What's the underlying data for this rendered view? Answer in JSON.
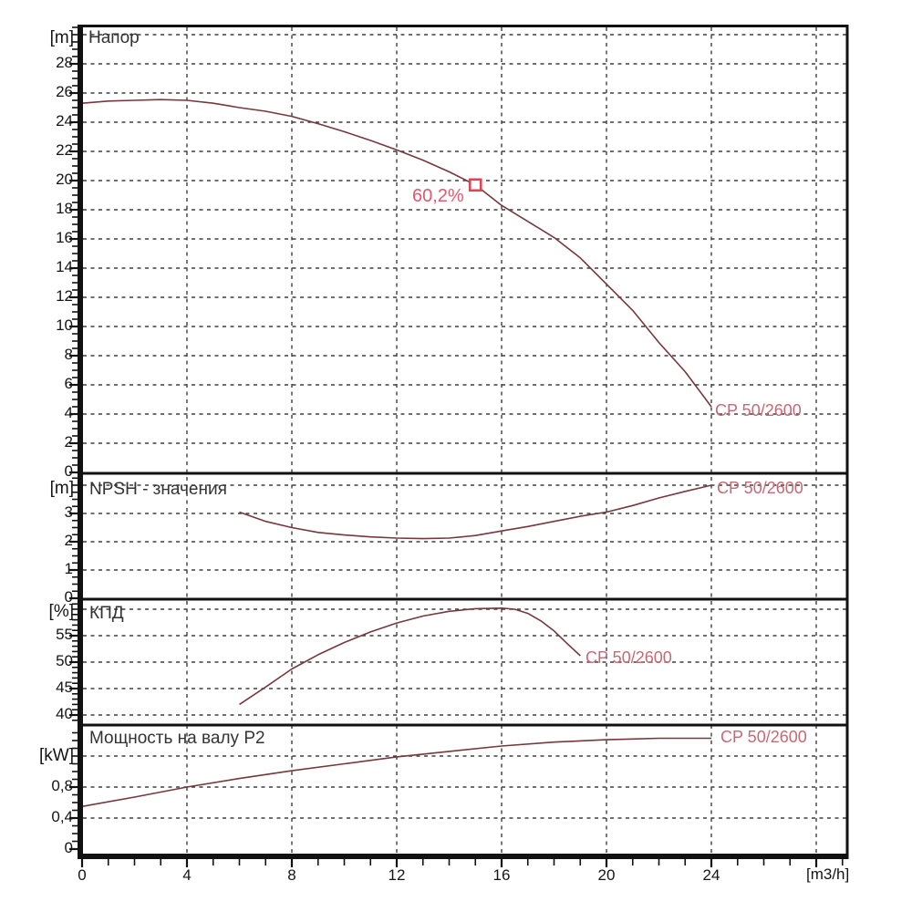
{
  "x_axis": {
    "unit_label": "[m3/h]",
    "xlim": [
      0,
      29.2
    ],
    "ticks": [
      [
        0,
        "0"
      ],
      [
        4,
        "4"
      ],
      [
        8,
        "8"
      ],
      [
        12,
        "12"
      ],
      [
        16,
        "16"
      ],
      [
        20,
        "20"
      ],
      [
        24,
        "24"
      ]
    ],
    "grid_q": [
      4,
      8,
      12,
      16,
      20,
      24,
      28
    ],
    "minor_step": 1
  },
  "colors": {
    "curve": "#77383c",
    "series_label": "#c46a76",
    "duty_marker": "#d6485a",
    "duty_label": "#dd5a6c",
    "grid": "#3f3f3f",
    "frame": "#111111",
    "text": "#151515",
    "background": "#ffffff"
  },
  "chart_data": [
    {
      "id": "head",
      "type": "line",
      "title": "Напор",
      "y_unit": "[m]",
      "ylim": [
        0,
        30.7
      ],
      "grid": true,
      "yticks": [
        [
          0,
          "0"
        ],
        [
          2,
          "2"
        ],
        [
          4,
          "4"
        ],
        [
          6,
          "6"
        ],
        [
          8,
          "8"
        ],
        [
          10,
          "10"
        ],
        [
          12,
          "12"
        ],
        [
          14,
          "14"
        ],
        [
          16,
          "16"
        ],
        [
          18,
          "18"
        ],
        [
          20,
          "20"
        ],
        [
          22,
          "22"
        ],
        [
          24,
          "24"
        ],
        [
          26,
          "26"
        ],
        [
          28,
          "28"
        ]
      ],
      "ygrid": [
        2,
        4,
        6,
        8,
        10,
        12,
        14,
        16,
        18,
        20,
        22,
        24,
        26,
        28,
        30
      ],
      "y_minor_step": 0.5,
      "series": [
        {
          "name": "CP 50/2600",
          "points": [
            [
              0,
              25.3
            ],
            [
              1,
              25.45
            ],
            [
              2,
              25.5
            ],
            [
              3,
              25.55
            ],
            [
              4,
              25.5
            ],
            [
              5,
              25.3
            ],
            [
              6,
              25.0
            ],
            [
              7,
              24.75
            ],
            [
              8,
              24.4
            ],
            [
              9,
              23.9
            ],
            [
              10,
              23.35
            ],
            [
              11,
              22.75
            ],
            [
              12,
              22.1
            ],
            [
              13,
              21.4
            ],
            [
              14,
              20.6
            ],
            [
              15,
              19.7
            ],
            [
              16,
              18.3
            ],
            [
              17,
              17.2
            ],
            [
              18,
              16.1
            ],
            [
              19,
              14.7
            ],
            [
              20,
              12.9
            ],
            [
              21,
              11.1
            ],
            [
              22,
              8.9
            ],
            [
              23,
              6.9
            ],
            [
              24,
              4.5
            ]
          ]
        }
      ],
      "duty_point": {
        "q_m3h": 15,
        "head_m": 19.7,
        "label": "60,2%"
      }
    },
    {
      "id": "npsh",
      "type": "line",
      "title": "NPSH - значения",
      "y_unit": "[m]",
      "ylim": [
        0,
        4.4
      ],
      "grid": true,
      "yticks": [
        [
          0,
          "0"
        ],
        [
          1,
          "1"
        ],
        [
          2,
          "2"
        ],
        [
          3,
          "3"
        ]
      ],
      "ygrid": [
        1,
        2,
        3,
        4
      ],
      "y_minor_step": 0.25,
      "series": [
        {
          "name": "CP 50/2600",
          "points": [
            [
              6,
              3.05
            ],
            [
              7,
              2.72
            ],
            [
              8,
              2.5
            ],
            [
              9,
              2.33
            ],
            [
              10,
              2.24
            ],
            [
              11,
              2.17
            ],
            [
              12,
              2.13
            ],
            [
              13,
              2.11
            ],
            [
              14,
              2.13
            ],
            [
              15,
              2.22
            ],
            [
              16,
              2.38
            ],
            [
              17,
              2.54
            ],
            [
              18,
              2.72
            ],
            [
              19,
              2.9
            ],
            [
              20,
              3.05
            ],
            [
              21,
              3.28
            ],
            [
              22,
              3.55
            ],
            [
              23,
              3.78
            ],
            [
              24,
              4.0
            ]
          ]
        }
      ]
    },
    {
      "id": "eff",
      "type": "line",
      "title": "КПД",
      "y_unit": "[%]",
      "ylim": [
        38.1,
        61.9
      ],
      "grid": true,
      "yticks": [
        [
          40,
          "40"
        ],
        [
          45,
          "45"
        ],
        [
          50,
          "50"
        ],
        [
          55,
          "55"
        ]
      ],
      "ygrid": [
        40,
        45,
        50,
        55,
        60
      ],
      "y_minor_step": 1,
      "series": [
        {
          "name": "CP 50/2600",
          "points": [
            [
              6,
              42
            ],
            [
              7,
              45.3
            ],
            [
              8,
              48.7
            ],
            [
              9,
              51.4
            ],
            [
              10,
              53.7
            ],
            [
              11,
              55.7
            ],
            [
              12,
              57.4
            ],
            [
              13,
              58.7
            ],
            [
              14,
              59.6
            ],
            [
              15,
              60.1
            ],
            [
              16,
              60.2
            ],
            [
              16.5,
              60.0
            ],
            [
              17,
              59.2
            ],
            [
              17.5,
              57.8
            ],
            [
              18,
              55.9
            ],
            [
              18.5,
              53.5
            ],
            [
              19,
              51.2
            ]
          ]
        }
      ]
    },
    {
      "id": "p2",
      "type": "line",
      "title": "Мощность на валу P2",
      "y_unit": "[kW]",
      "ylim": [
        0,
        1.66
      ],
      "grid": true,
      "yticks": [
        [
          0,
          "0"
        ],
        [
          0.4,
          "0,4"
        ],
        [
          0.8,
          "0,8"
        ]
      ],
      "ygrid": [
        0.4,
        0.8,
        1.2
      ],
      "y_minor_step": 0.1,
      "series": [
        {
          "name": "CP 50/2600",
          "points": [
            [
              0,
              0.55
            ],
            [
              2,
              0.67
            ],
            [
              4,
              0.8
            ],
            [
              6,
              0.91
            ],
            [
              8,
              1.01
            ],
            [
              10,
              1.1
            ],
            [
              12,
              1.19
            ],
            [
              14,
              1.26
            ],
            [
              16,
              1.33
            ],
            [
              18,
              1.38
            ],
            [
              20,
              1.41
            ],
            [
              21,
              1.42
            ],
            [
              22,
              1.43
            ],
            [
              24,
              1.43
            ]
          ]
        }
      ]
    }
  ]
}
